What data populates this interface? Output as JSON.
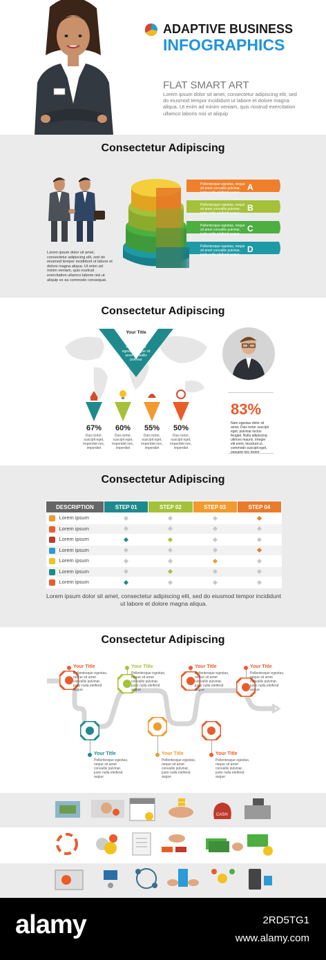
{
  "header": {
    "title_line1": "ADAPTIVE BUSINESS",
    "title_line2": "INFOGRAPHICS",
    "subtitle": "FLAT SMART ART",
    "body": "Lorem ipsum dolor sit amet, consectetur adipiscing elit, sed do eiusmod tempor incididunt ut labore et dolore magna aliqua. Ut enim ad minim veniam, quis nostrud exercitation ullamco laboris nisi ut aliquip",
    "badge_color_a": "#2a9bd6",
    "badge_color_b": "#f2b81f",
    "badge_color_c": "#d9452b"
  },
  "section1": {
    "title": "Consectetur Adipiscing",
    "body": "Lorem ipsum dolor sit amet, consectetur adipiscing elit, sed do eiusmod tempor incididunt ut labore et dolore magna aliqua. Ut enim ad minim veniam, quis nostrud exercitation ullamco laboris nisi ut aliquip ex ea commodo consequat.",
    "bands": [
      {
        "letter": "A",
        "text": "Pellentesque egestas, neque sit amet convallis pulvinar, justo nulla eleifend augue",
        "color": "#f07f2b"
      },
      {
        "letter": "B",
        "text": "Pellentesque egestas, neque sit amet convallis pulvinar, justo nulla eleifend augue",
        "color": "#a5c13a"
      },
      {
        "letter": "C",
        "text": "Pellentesque egestas, neque sit amet convallis pulvinar, justo nulla eleifend augue",
        "color": "#4caf3f"
      },
      {
        "letter": "D",
        "text": "Pellentesque egestas, neque sit amet convallis pulvinar, justo nulla eleifend augue",
        "color": "#1e9aa6"
      }
    ]
  },
  "section2": {
    "title": "Consectetur Adipiscing",
    "funnel_title": "Your Title",
    "funnel_text": "Pellentesque egestas, neque sit amet convallis pulvinar",
    "big_pct": "83%",
    "big_text": "Nam egestas dolor sit amet, Duis tortor suscipit eget, pulvinar luctus feugiat. Nulla adipiscing ultrices mauris. Integer elit enim, tincidunt ut, commodo suscipit eget, posuere nec lorem",
    "items": [
      {
        "pct": "67%",
        "text": "Duis tortor, suscipit eget, imperdiet nec, imperdiet",
        "color": "#1f8a8c"
      },
      {
        "pct": "60%",
        "text": "Duis tortor, suscipit eget, imperdiet nec, imperdiet",
        "color": "#a5c13a"
      },
      {
        "pct": "55%",
        "text": "Duis tortor, suscipit eget, imperdiet nec, imperdiet",
        "color": "#f29a2e"
      },
      {
        "pct": "50%",
        "text": "Duis tortor, suscipit eget, imperdiet nec, imperdiet",
        "color": "#e95c2a"
      }
    ]
  },
  "section3": {
    "title": "Consectetur Adipiscing",
    "headers": [
      "DESCRIPTION",
      "STEP 01",
      "STEP 02",
      "STEP 03",
      "STEP 04"
    ],
    "header_colors": [
      "#666666",
      "#1f8a8c",
      "#a5c13a",
      "#f29a2e",
      "#e97b2b"
    ],
    "rows": [
      {
        "label": "Lorem ipsum",
        "marks": [
          "#c8c8c8",
          "#c8c8c8",
          "#c8c8c8",
          "#e97b2b"
        ]
      },
      {
        "label": "Lorem ipsum",
        "marks": [
          "#c8c8c8",
          "#c8c8c8",
          "#c8c8c8",
          "#c8c8c8"
        ]
      },
      {
        "label": "Lorem ipsum",
        "marks": [
          "#1f8a8c",
          "#a5c13a",
          "#c8c8c8",
          "#c8c8c8"
        ]
      },
      {
        "label": "Lorem ipsum",
        "marks": [
          "#c8c8c8",
          "#c8c8c8",
          "#c8c8c8",
          "#e97b2b"
        ]
      },
      {
        "label": "Lorem ipsum",
        "marks": [
          "#c8c8c8",
          "#c8c8c8",
          "#f29a2e",
          "#c8c8c8"
        ]
      },
      {
        "label": "Lorem ipsum",
        "marks": [
          "#c8c8c8",
          "#a5c13a",
          "#c8c8c8",
          "#c8c8c8"
        ]
      },
      {
        "label": "Lorem ipsum",
        "marks": [
          "#1f8a8c",
          "#c8c8c8",
          "#c8c8c8",
          "#c8c8c8"
        ]
      }
    ],
    "caption": "Lorem ipsum dolor sit amet, consectetur adipiscing elit, sed do eiusmod tempor incididunt ut labore et dolore magna aliqua."
  },
  "section4": {
    "title": "Consectetur Adipiscing",
    "node_text": "Pellentesque egestas, neque sit amet convallis pulvinar, justo nulla eleifend augue",
    "node_title": "Your Title"
  },
  "footer": {
    "brand": "alamy",
    "image_id": "2RD5TG1",
    "url": "www.alamy.com"
  }
}
